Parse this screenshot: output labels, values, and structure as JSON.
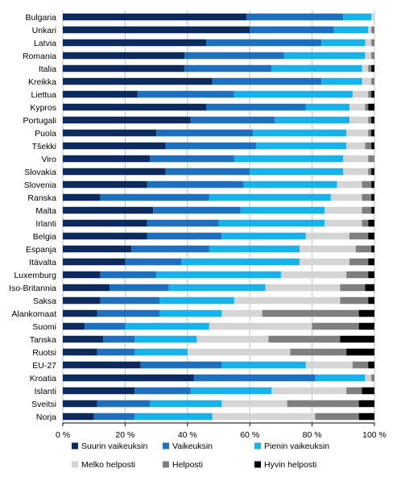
{
  "chart_data": {
    "type": "bar",
    "orientation": "horizontal",
    "stacked": true,
    "percent": true,
    "categories": [
      "Bulgaria",
      "Unkari",
      "Latvia",
      "Romania",
      "Italia",
      "Kreikka",
      "Liettua",
      "Kypros",
      "Portugali",
      "Puola",
      "Tšekki",
      "Viro",
      "Slovakia",
      "Slovenia",
      "Ranska",
      "Malta",
      "Irlanti",
      "Belgia",
      "Espanja",
      "Itävalta",
      "Luxemburg",
      "Iso-Britannia",
      "Saksa",
      "Alankomaat",
      "Suomi",
      "Tanska",
      "Ruotsi",
      "EU-27",
      "Kroatia",
      "Islanti",
      "Sveitsi",
      "Norja"
    ],
    "series": [
      {
        "name": "Suurin vaikeuksin",
        "color": "#0d2a5c",
        "values": [
          59,
          60,
          46,
          39,
          39,
          48,
          24,
          46,
          41,
          30,
          33,
          28,
          33,
          27,
          12,
          29,
          27,
          27,
          22,
          20,
          12,
          15,
          12,
          11,
          7,
          13,
          11,
          25,
          42,
          23,
          11,
          10
        ]
      },
      {
        "name": "Vaikeuksin",
        "color": "#1f6fbf",
        "values": [
          31,
          27,
          37,
          32,
          28,
          35,
          31,
          32,
          27,
          31,
          29,
          27,
          27,
          31,
          35,
          28,
          23,
          24,
          25,
          18,
          18,
          19,
          19,
          20,
          13,
          10,
          12,
          26,
          39,
          18,
          17,
          13
        ]
      },
      {
        "name": "Pienin vaikeuksin",
        "color": "#1ab1e8",
        "values": [
          9,
          11,
          14,
          26,
          29,
          13,
          38,
          14,
          24,
          30,
          29,
          35,
          30,
          30,
          39,
          27,
          34,
          27,
          29,
          38,
          40,
          31,
          24,
          20,
          27,
          20,
          17,
          27,
          16,
          26,
          23,
          25
        ]
      },
      {
        "name": "Melko helposti",
        "color": "#d4d4d4",
        "values": [
          1,
          1,
          2,
          2,
          2,
          3,
          5,
          5,
          6,
          7,
          6,
          8,
          8,
          8,
          10,
          12,
          12,
          14,
          18,
          16,
          21,
          24,
          34,
          13,
          33,
          23,
          33,
          15,
          2,
          24,
          21,
          33
        ]
      },
      {
        "name": "Helposti",
        "color": "#7f7f7f",
        "values": [
          0,
          1,
          1,
          1,
          1,
          1,
          1,
          1,
          1,
          1,
          2,
          2,
          1,
          3,
          3,
          3,
          2,
          6,
          5,
          6,
          7,
          8,
          9,
          31,
          15,
          23,
          18,
          5,
          1,
          5,
          23,
          14
        ]
      },
      {
        "name": "Hyvin helposti",
        "color": "#000000",
        "values": [
          0,
          0,
          0,
          0,
          1,
          0,
          1,
          2,
          1,
          1,
          1,
          0,
          1,
          1,
          1,
          1,
          2,
          2,
          1,
          2,
          2,
          3,
          2,
          5,
          5,
          11,
          9,
          2,
          0,
          4,
          5,
          5
        ]
      }
    ],
    "x_ticks": [
      "0 %",
      "20 %",
      "40 %",
      "60 %",
      "80 %",
      "100 %"
    ],
    "xlim": [
      0,
      100
    ],
    "grid": true,
    "legend_position": "bottom"
  }
}
